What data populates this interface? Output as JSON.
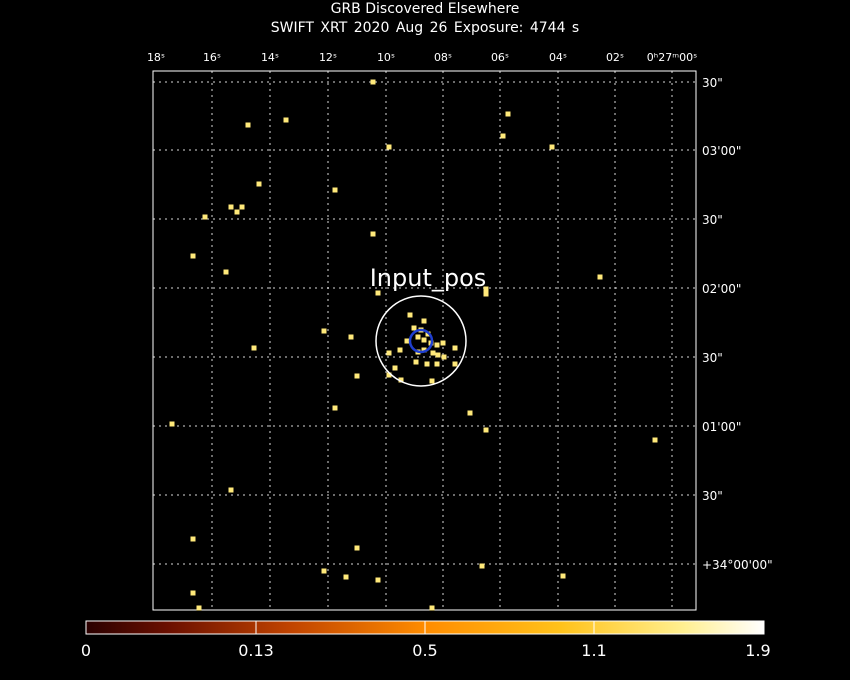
{
  "header": {
    "title": "GRB Discovered Elsewhere",
    "subtitle": "SWIFT XRT   2020 Aug 26    Exposure: 4744 s"
  },
  "axes": {
    "top_ticks": [
      "18ˢ",
      "16ˢ",
      "14ˢ",
      "12ˢ",
      "10ˢ",
      "08ˢ",
      "06ˢ",
      "04ˢ",
      "02ˢ",
      "0ʰ27ᵐ00ˢ"
    ],
    "right_ticks": [
      "30\"",
      "03'00\"",
      "30\"",
      "02'00\"",
      "30\"",
      "01'00\"",
      "30\"",
      "+34°00'00\""
    ]
  },
  "annotation": {
    "label": "Input_pos"
  },
  "colorbar": {
    "ticks": [
      "0",
      "0.13",
      "0.5",
      "1.1",
      "1.9"
    ],
    "range": [
      0,
      1.9
    ]
  },
  "colors": {
    "background": "#000000",
    "grid": "#ffffff",
    "photon": "#ffe97a",
    "source_circle": "#ffffff",
    "position_circle": "#1f3fd0"
  }
}
